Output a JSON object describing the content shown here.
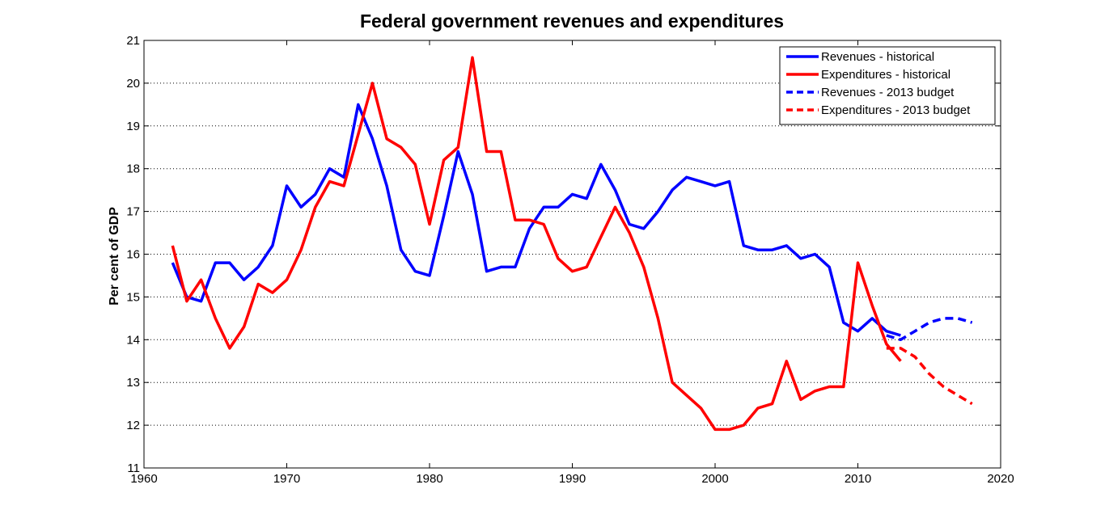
{
  "chart_data": {
    "type": "line",
    "title": "Federal government revenues and expenditures",
    "xlabel": "",
    "ylabel": "Per cent of GDP",
    "xlim": [
      1960,
      2020
    ],
    "ylim": [
      11,
      21
    ],
    "xticks": [
      1960,
      1970,
      1980,
      1990,
      2000,
      2010,
      2020
    ],
    "yticks": [
      11,
      12,
      13,
      14,
      15,
      16,
      17,
      18,
      19,
      20,
      21
    ],
    "grid": "horizontal dotted",
    "legend_position": "top-right",
    "series": [
      {
        "name": "Revenues - historical",
        "color": "#0000ff",
        "style": "solid",
        "x": [
          1962,
          1963,
          1964,
          1965,
          1966,
          1967,
          1968,
          1969,
          1970,
          1971,
          1972,
          1973,
          1974,
          1975,
          1976,
          1977,
          1978,
          1979,
          1980,
          1981,
          1982,
          1983,
          1984,
          1985,
          1986,
          1987,
          1988,
          1989,
          1990,
          1991,
          1992,
          1993,
          1994,
          1995,
          1996,
          1997,
          1998,
          1999,
          2000,
          2001,
          2002,
          2003,
          2004,
          2005,
          2006,
          2007,
          2008,
          2009,
          2010,
          2011,
          2012,
          2013
        ],
        "y": [
          15.8,
          15.0,
          14.9,
          15.8,
          15.8,
          15.4,
          15.7,
          16.2,
          17.6,
          17.1,
          17.4,
          18.0,
          17.8,
          19.5,
          18.7,
          17.6,
          16.1,
          15.6,
          15.5,
          16.9,
          18.4,
          17.4,
          15.6,
          15.7,
          15.7,
          16.6,
          17.1,
          17.1,
          17.4,
          17.3,
          18.1,
          17.5,
          16.7,
          16.6,
          17.0,
          17.5,
          17.8,
          17.7,
          17.6,
          17.7,
          16.2,
          16.1,
          16.1,
          16.2,
          15.9,
          16.0,
          15.7,
          14.4,
          14.2,
          14.5,
          14.2,
          14.1
        ]
      },
      {
        "name": "Expenditures - historical",
        "color": "#ff0000",
        "style": "solid",
        "x": [
          1962,
          1963,
          1964,
          1965,
          1966,
          1967,
          1968,
          1969,
          1970,
          1971,
          1972,
          1973,
          1974,
          1975,
          1976,
          1977,
          1978,
          1979,
          1980,
          1981,
          1982,
          1983,
          1984,
          1985,
          1986,
          1987,
          1988,
          1989,
          1990,
          1991,
          1992,
          1993,
          1994,
          1995,
          1996,
          1997,
          1998,
          1999,
          2000,
          2001,
          2002,
          2003,
          2004,
          2005,
          2006,
          2007,
          2008,
          2009,
          2010,
          2011,
          2012,
          2013
        ],
        "y": [
          16.2,
          14.9,
          15.4,
          14.5,
          13.8,
          14.3,
          15.3,
          15.1,
          15.4,
          16.1,
          17.1,
          17.7,
          17.6,
          18.8,
          20.0,
          18.7,
          18.5,
          18.1,
          16.7,
          18.2,
          18.5,
          20.6,
          18.4,
          18.4,
          16.8,
          16.8,
          16.7,
          15.9,
          15.6,
          15.7,
          16.4,
          17.1,
          16.5,
          15.7,
          14.5,
          13.0,
          12.7,
          12.4,
          11.9,
          11.9,
          12.0,
          12.4,
          12.5,
          13.5,
          12.6,
          12.8,
          12.9,
          12.9,
          15.8,
          14.8,
          13.9,
          13.5
        ]
      },
      {
        "name": "Revenues - 2013 budget",
        "color": "#0000ff",
        "style": "dashed",
        "x": [
          2012,
          2013,
          2014,
          2015,
          2016,
          2017,
          2018
        ],
        "y": [
          14.1,
          14.0,
          14.2,
          14.4,
          14.5,
          14.5,
          14.4
        ]
      },
      {
        "name": "Expenditures - 2013 budget",
        "color": "#ff0000",
        "style": "dashed",
        "x": [
          2012,
          2013,
          2014,
          2015,
          2016,
          2017,
          2018
        ],
        "y": [
          13.8,
          13.8,
          13.6,
          13.2,
          12.9,
          12.7,
          12.5
        ]
      }
    ]
  }
}
